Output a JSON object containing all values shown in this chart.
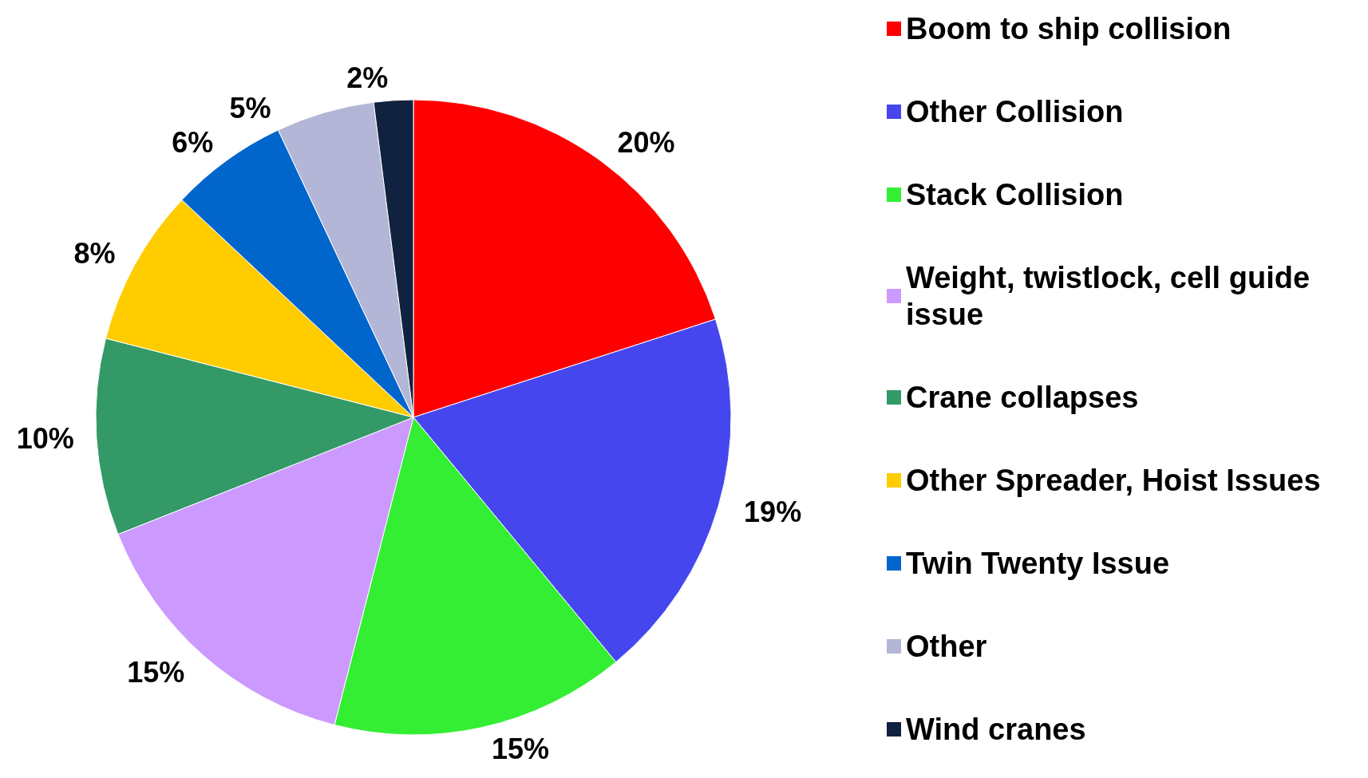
{
  "chart_data": {
    "type": "pie",
    "categories": [
      "Boom to ship collision",
      "Other Collision",
      "Stack Collision",
      "Weight, twistlock, cell guide issue",
      "Crane collapses",
      "Other Spreader, Hoist Issues",
      "Twin Twenty Issue",
      "Other",
      "Wind cranes"
    ],
    "values": [
      20,
      19,
      15,
      15,
      10,
      8,
      6,
      5,
      2
    ],
    "colors": [
      "#ff0000",
      "#4646ee",
      "#33ee33",
      "#cc99ff",
      "#339966",
      "#ffcc00",
      "#0066cc",
      "#b3b6d6",
      "#10223f"
    ],
    "value_labels": [
      "20%",
      "19%",
      "15%",
      "15%",
      "10%",
      "8%",
      "6%",
      "5%",
      "2%"
    ],
    "legend": "right"
  }
}
